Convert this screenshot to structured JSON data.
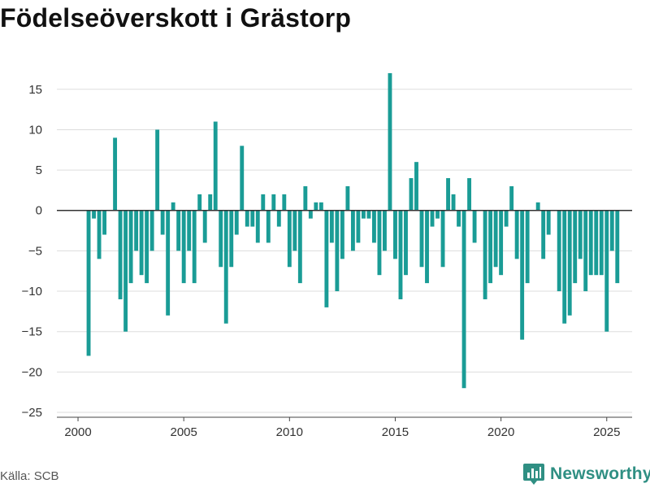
{
  "title": "Födelseöverskott i Grästorp",
  "source": "Källa: SCB",
  "brand": {
    "name": "Newsworthy",
    "icon": "bar-chart-logo-icon"
  },
  "colors": {
    "bar": "#1a9c96",
    "zero_line": "#333333",
    "grid": "#dddddd",
    "brand": "#2f8f83"
  },
  "chart_data": {
    "type": "bar",
    "title": "Födelseöverskott i Grästorp",
    "xlabel": "",
    "ylabel": "",
    "x_tick_labels": [
      "2000",
      "2005",
      "2010",
      "2015",
      "2020",
      "2025"
    ],
    "y_ticks": [
      15,
      10,
      5,
      0,
      -5,
      -10,
      -15,
      -20,
      -25
    ],
    "y_tick_labels": [
      "15",
      "10",
      "5",
      "0",
      "−5",
      "−10",
      "−15",
      "−20",
      "−25"
    ],
    "ylim": [
      -25,
      18
    ],
    "xlim": [
      1999.0,
      2026.2
    ],
    "grid": true,
    "series": [
      {
        "values": [
          {
            "x": 2000.5,
            "y": -18
          },
          {
            "x": 2000.75,
            "y": -1
          },
          {
            "x": 2001.0,
            "y": -6
          },
          {
            "x": 2001.25,
            "y": -3
          },
          {
            "x": 2001.5,
            "y": 0
          },
          {
            "x": 2001.75,
            "y": 9
          },
          {
            "x": 2002.0,
            "y": -11
          },
          {
            "x": 2002.25,
            "y": -15
          },
          {
            "x": 2002.5,
            "y": -9
          },
          {
            "x": 2002.75,
            "y": -5
          },
          {
            "x": 2003.0,
            "y": -8
          },
          {
            "x": 2003.25,
            "y": -9
          },
          {
            "x": 2003.5,
            "y": -5
          },
          {
            "x": 2003.75,
            "y": 10
          },
          {
            "x": 2004.0,
            "y": -3
          },
          {
            "x": 2004.25,
            "y": -13
          },
          {
            "x": 2004.5,
            "y": 1
          },
          {
            "x": 2004.75,
            "y": -5
          },
          {
            "x": 2005.0,
            "y": -9
          },
          {
            "x": 2005.25,
            "y": -5
          },
          {
            "x": 2005.5,
            "y": -9
          },
          {
            "x": 2005.75,
            "y": 2
          },
          {
            "x": 2006.0,
            "y": -4
          },
          {
            "x": 2006.25,
            "y": 2
          },
          {
            "x": 2006.5,
            "y": 11
          },
          {
            "x": 2006.75,
            "y": -7
          },
          {
            "x": 2007.0,
            "y": -14
          },
          {
            "x": 2007.25,
            "y": -7
          },
          {
            "x": 2007.5,
            "y": -3
          },
          {
            "x": 2007.75,
            "y": 8
          },
          {
            "x": 2008.0,
            "y": -2
          },
          {
            "x": 2008.25,
            "y": -2
          },
          {
            "x": 2008.5,
            "y": -4
          },
          {
            "x": 2008.75,
            "y": 2
          },
          {
            "x": 2009.0,
            "y": -4
          },
          {
            "x": 2009.25,
            "y": 2
          },
          {
            "x": 2009.5,
            "y": -2
          },
          {
            "x": 2009.75,
            "y": 2
          },
          {
            "x": 2010.0,
            "y": -7
          },
          {
            "x": 2010.25,
            "y": -5
          },
          {
            "x": 2010.5,
            "y": -9
          },
          {
            "x": 2010.75,
            "y": 3
          },
          {
            "x": 2011.0,
            "y": -1
          },
          {
            "x": 2011.25,
            "y": 1
          },
          {
            "x": 2011.5,
            "y": 1
          },
          {
            "x": 2011.75,
            "y": -12
          },
          {
            "x": 2012.0,
            "y": -4
          },
          {
            "x": 2012.25,
            "y": -10
          },
          {
            "x": 2012.5,
            "y": -6
          },
          {
            "x": 2012.75,
            "y": 3
          },
          {
            "x": 2013.0,
            "y": -5
          },
          {
            "x": 2013.25,
            "y": -4
          },
          {
            "x": 2013.5,
            "y": -1
          },
          {
            "x": 2013.75,
            "y": -1
          },
          {
            "x": 2014.0,
            "y": -4
          },
          {
            "x": 2014.25,
            "y": -8
          },
          {
            "x": 2014.5,
            "y": -5
          },
          {
            "x": 2014.75,
            "y": 17
          },
          {
            "x": 2015.0,
            "y": -6
          },
          {
            "x": 2015.25,
            "y": -11
          },
          {
            "x": 2015.5,
            "y": -8
          },
          {
            "x": 2015.75,
            "y": 4
          },
          {
            "x": 2016.0,
            "y": 6
          },
          {
            "x": 2016.25,
            "y": -7
          },
          {
            "x": 2016.5,
            "y": -9
          },
          {
            "x": 2016.75,
            "y": -2
          },
          {
            "x": 2017.0,
            "y": -1
          },
          {
            "x": 2017.25,
            "y": -7
          },
          {
            "x": 2017.5,
            "y": 4
          },
          {
            "x": 2017.75,
            "y": 2
          },
          {
            "x": 2018.0,
            "y": -2
          },
          {
            "x": 2018.25,
            "y": -22
          },
          {
            "x": 2018.5,
            "y": 4
          },
          {
            "x": 2018.75,
            "y": -4
          },
          {
            "x": 2019.0,
            "y": 0
          },
          {
            "x": 2019.25,
            "y": -11
          },
          {
            "x": 2019.5,
            "y": -9
          },
          {
            "x": 2019.75,
            "y": -7
          },
          {
            "x": 2020.0,
            "y": -8
          },
          {
            "x": 2020.25,
            "y": -2
          },
          {
            "x": 2020.5,
            "y": 3
          },
          {
            "x": 2020.75,
            "y": -6
          },
          {
            "x": 2021.0,
            "y": -16
          },
          {
            "x": 2021.25,
            "y": -9
          },
          {
            "x": 2021.5,
            "y": 0
          },
          {
            "x": 2021.75,
            "y": 1
          },
          {
            "x": 2022.0,
            "y": -6
          },
          {
            "x": 2022.25,
            "y": -3
          },
          {
            "x": 2022.5,
            "y": 0
          },
          {
            "x": 2022.75,
            "y": -10
          },
          {
            "x": 2023.0,
            "y": -14
          },
          {
            "x": 2023.25,
            "y": -13
          },
          {
            "x": 2023.5,
            "y": -9
          },
          {
            "x": 2023.75,
            "y": -6
          },
          {
            "x": 2024.0,
            "y": -10
          },
          {
            "x": 2024.25,
            "y": -8
          },
          {
            "x": 2024.5,
            "y": -8
          },
          {
            "x": 2024.75,
            "y": -8
          },
          {
            "x": 2025.0,
            "y": -15
          },
          {
            "x": 2025.25,
            "y": -5
          },
          {
            "x": 2025.5,
            "y": -9
          }
        ]
      }
    ]
  }
}
